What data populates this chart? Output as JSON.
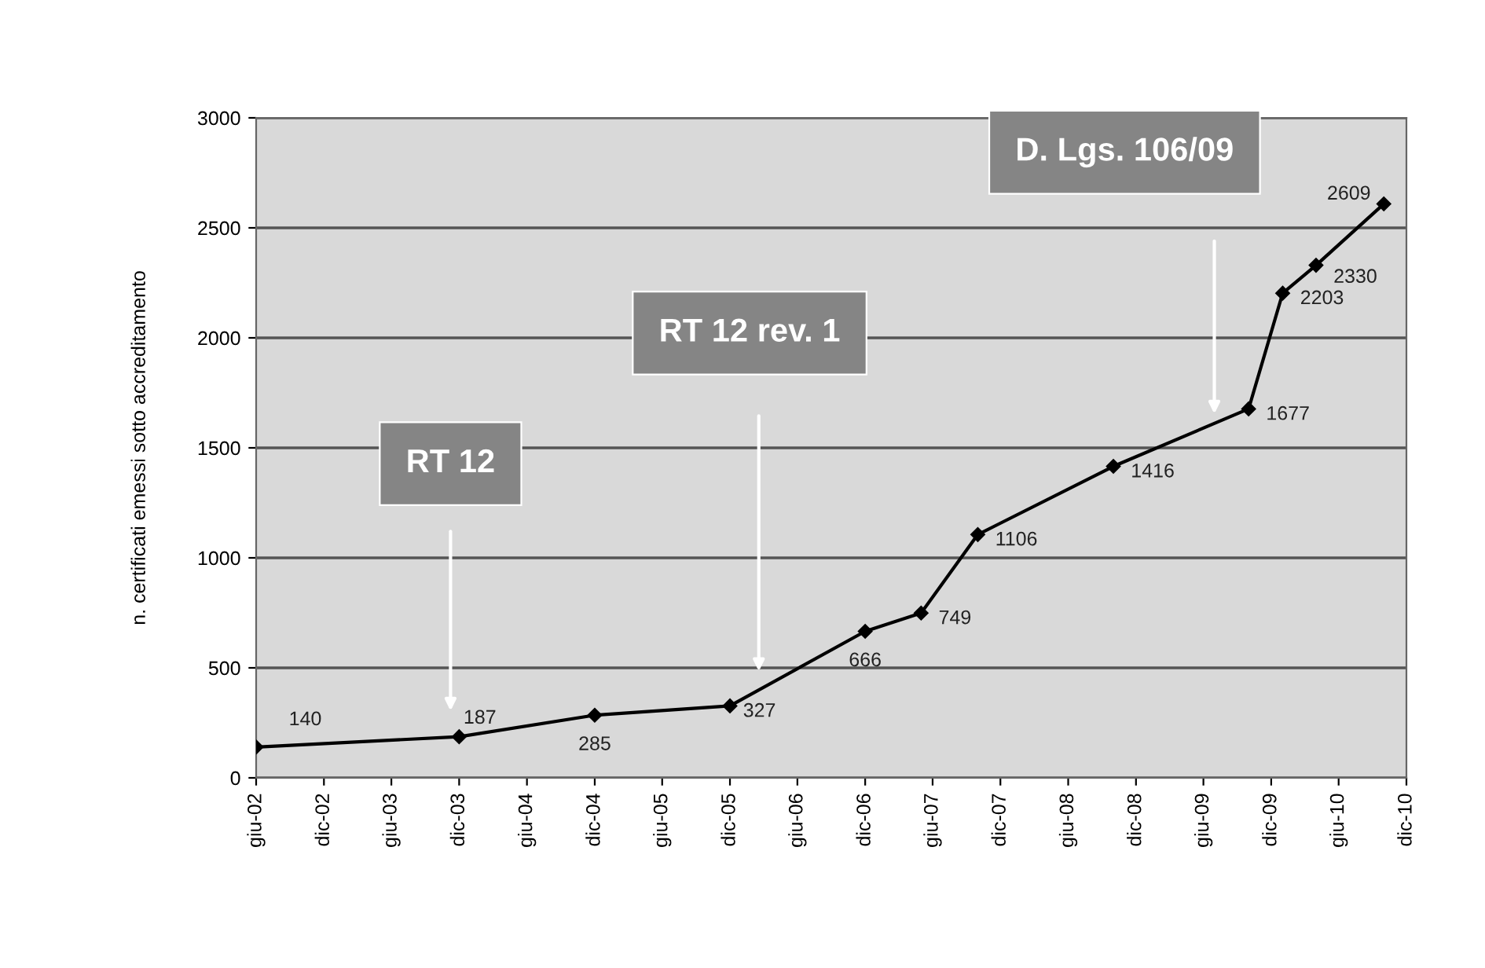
{
  "chart_data": {
    "type": "line",
    "ylabel": "n. certificati emessi sotto accreditamento",
    "x": [
      "2002-06",
      "2003-12",
      "2004-12",
      "2005-12",
      "2006-12",
      "2007-05",
      "2007-10",
      "2008-10",
      "2009-10",
      "2010-01",
      "2010-04",
      "2010-10"
    ],
    "values": [
      140,
      187,
      285,
      327,
      666,
      749,
      1106,
      1416,
      1677,
      2203,
      2330,
      2609
    ],
    "color": "#000000",
    "marker": "diamond",
    "line_style": "solid",
    "data_labels": true,
    "ylim": [
      0,
      3000
    ],
    "yticks": [
      0,
      500,
      1000,
      1500,
      2000,
      2500,
      3000
    ],
    "xlim": [
      "2002-06",
      "2010-12"
    ],
    "xticks": [
      {
        "value": "2002-06",
        "label": "giu-02"
      },
      {
        "value": "2002-12",
        "label": "dic-02"
      },
      {
        "value": "2003-06",
        "label": "giu-03"
      },
      {
        "value": "2003-12",
        "label": "dic-03"
      },
      {
        "value": "2004-06",
        "label": "giu-04"
      },
      {
        "value": "2004-12",
        "label": "dic-04"
      },
      {
        "value": "2005-06",
        "label": "giu-05"
      },
      {
        "value": "2005-12",
        "label": "dic-05"
      },
      {
        "value": "2006-06",
        "label": "giu-06"
      },
      {
        "value": "2006-12",
        "label": "dic-06"
      },
      {
        "value": "2007-06",
        "label": "giu-07"
      },
      {
        "value": "2007-12",
        "label": "dic-07"
      },
      {
        "value": "2008-06",
        "label": "giu-08"
      },
      {
        "value": "2008-12",
        "label": "dic-08"
      },
      {
        "value": "2009-06",
        "label": "giu-09"
      },
      {
        "value": "2009-12",
        "label": "dic-09"
      },
      {
        "value": "2010-06",
        "label": "giu-10"
      },
      {
        "value": "2010-12",
        "label": "dic-10"
      }
    ],
    "grid": "y",
    "annotations": [
      "RT 12",
      "RT 12 rev. 1",
      "D. Lgs. 106/09"
    ]
  }
}
